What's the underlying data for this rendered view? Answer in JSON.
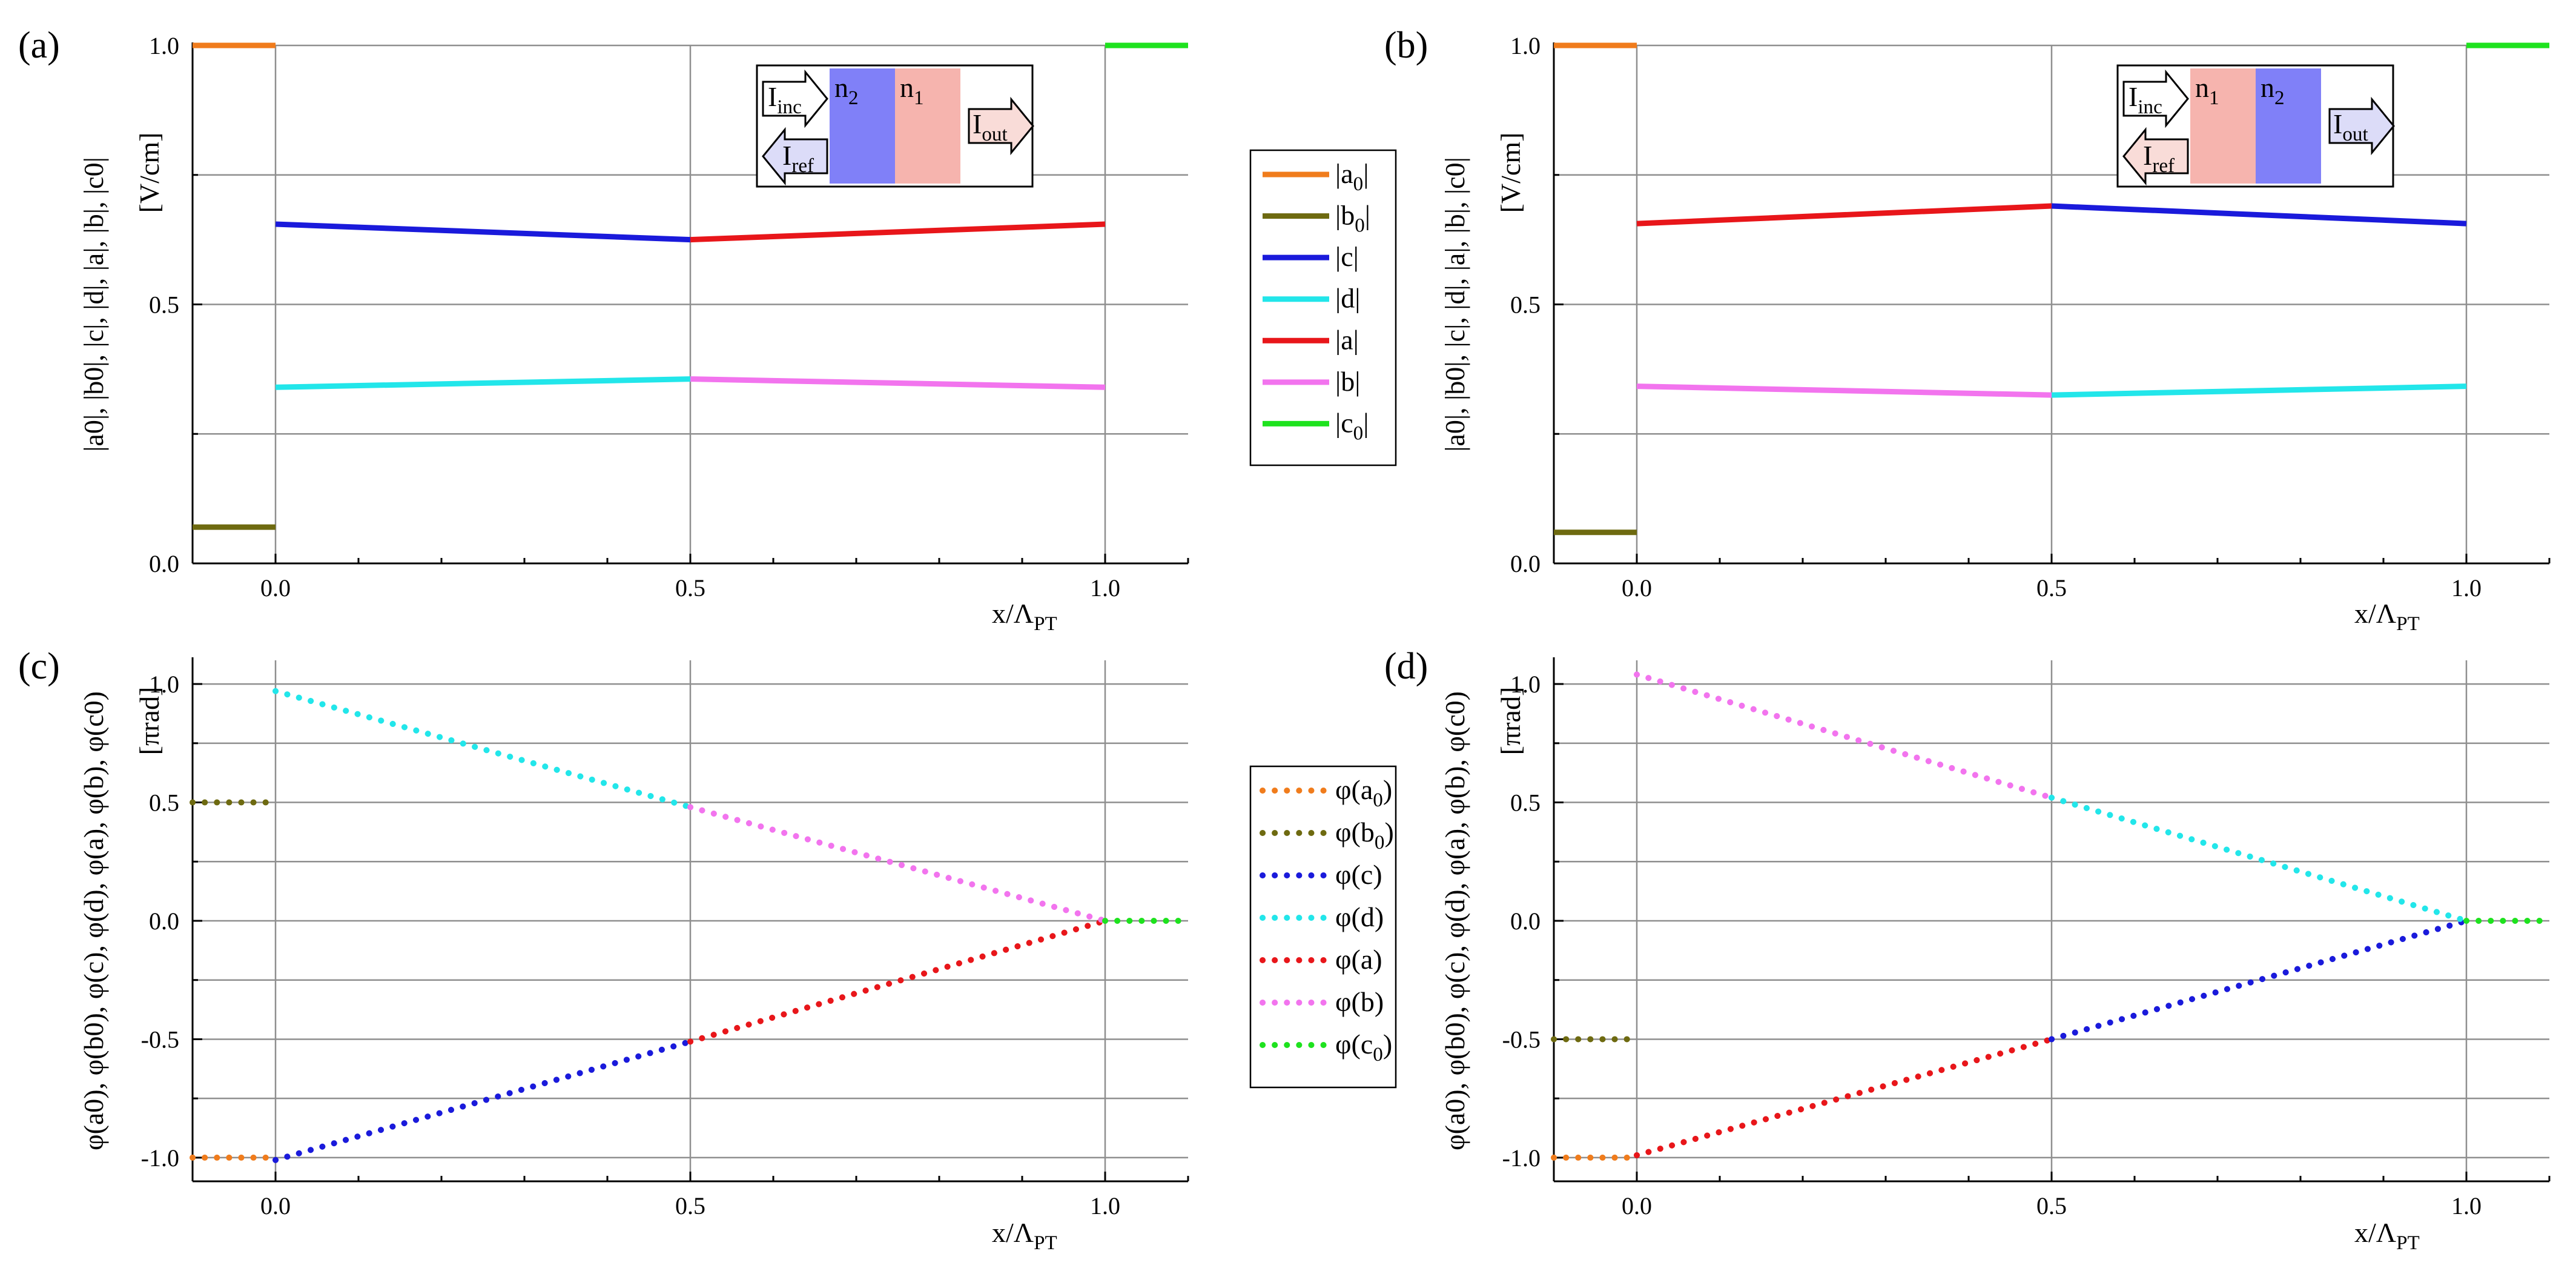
{
  "chart_data": [
    {
      "id": "a",
      "type": "line",
      "panel_label": "(a)",
      "xlabel": "x/Λ",
      "xlabel_sub": "PT",
      "ylabel_main": "|a0|, |b0|, |c|, |d|, |a|, |b|, |c0|",
      "ylabel_unit": "[V/cm]",
      "xlim": [
        -0.1,
        1.1
      ],
      "ylim": [
        0,
        1.0
      ],
      "xticks": [
        0.0,
        0.5,
        1.0
      ],
      "xtick_labels": [
        "0.0",
        "0.5",
        "1.0"
      ],
      "yticks": [
        0.0,
        0.5,
        1.0
      ],
      "ytick_labels": [
        "0.0",
        "0.5",
        "1.0"
      ],
      "minor_yticks": [
        0.25,
        0.75
      ],
      "style": "solid",
      "series": [
        {
          "name": "|a0|",
          "color": "#f07c1c",
          "x": [
            -0.1,
            0.0
          ],
          "y": [
            1.0,
            1.0
          ]
        },
        {
          "name": "|b0|",
          "color": "#6e6a10",
          "x": [
            -0.1,
            0.0
          ],
          "y": [
            0.07,
            0.07
          ]
        },
        {
          "name": "|c|",
          "color": "#1a1adb",
          "x": [
            0.0,
            0.5
          ],
          "y": [
            0.655,
            0.625
          ]
        },
        {
          "name": "|d|",
          "color": "#22e6ea",
          "x": [
            0.0,
            0.5
          ],
          "y": [
            0.34,
            0.356
          ]
        },
        {
          "name": "|a|",
          "color": "#e8161a",
          "x": [
            0.5,
            1.0
          ],
          "y": [
            0.625,
            0.655
          ]
        },
        {
          "name": "|b|",
          "color": "#f274ee",
          "x": [
            0.5,
            1.0
          ],
          "y": [
            0.356,
            0.34
          ]
        },
        {
          "name": "|c0|",
          "color": "#1ee21e",
          "x": [
            1.0,
            1.1
          ],
          "y": [
            1.0,
            1.0
          ]
        }
      ],
      "inset": {
        "arrow_in": "I",
        "arrow_in_sub": "inc",
        "arrow_ref": "I",
        "arrow_ref_sub": "ref",
        "arrow_out": "I",
        "arrow_out_sub": "out",
        "layer1": "n",
        "layer1_sub": "2",
        "layer1_color": "#8080f8",
        "layer2": "n",
        "layer2_sub": "1",
        "layer2_color": "#f6b4ae",
        "ref_arrow_color": "#dcdcf8",
        "out_arrow_color": "#f9dcd8",
        "in_arrow_color": "#ffffff"
      }
    },
    {
      "id": "b",
      "type": "line",
      "panel_label": "(b)",
      "xlabel": "x/Λ",
      "xlabel_sub": "PT",
      "ylabel_main": "|a0|, |b0|, |c|, |d|, |a|, |b|, |c0|",
      "ylabel_unit": "[V/cm]",
      "xlim": [
        -0.1,
        1.1
      ],
      "ylim": [
        0,
        1.0
      ],
      "xticks": [
        0.0,
        0.5,
        1.0
      ],
      "xtick_labels": [
        "0.0",
        "0.5",
        "1.0"
      ],
      "yticks": [
        0.0,
        0.5,
        1.0
      ],
      "ytick_labels": [
        "0.0",
        "0.5",
        "1.0"
      ],
      "minor_yticks": [
        0.25,
        0.75
      ],
      "style": "solid",
      "series": [
        {
          "name": "|a0|",
          "color": "#f07c1c",
          "x": [
            -0.1,
            0.0
          ],
          "y": [
            1.0,
            1.0
          ]
        },
        {
          "name": "|b0|",
          "color": "#6e6a10",
          "x": [
            -0.1,
            0.0
          ],
          "y": [
            0.06,
            0.06
          ]
        },
        {
          "name": "|a|",
          "color": "#e8161a",
          "x": [
            0.0,
            0.5
          ],
          "y": [
            0.656,
            0.69
          ]
        },
        {
          "name": "|b|",
          "color": "#f274ee",
          "x": [
            0.0,
            0.5
          ],
          "y": [
            0.342,
            0.325
          ]
        },
        {
          "name": "|c|",
          "color": "#1a1adb",
          "x": [
            0.5,
            1.0
          ],
          "y": [
            0.69,
            0.656
          ]
        },
        {
          "name": "|d|",
          "color": "#22e6ea",
          "x": [
            0.5,
            1.0
          ],
          "y": [
            0.325,
            0.342
          ]
        },
        {
          "name": "|c0|",
          "color": "#1ee21e",
          "x": [
            1.0,
            1.1
          ],
          "y": [
            1.0,
            1.0
          ]
        }
      ],
      "inset": {
        "arrow_in": "I",
        "arrow_in_sub": "inc",
        "arrow_ref": "I",
        "arrow_ref_sub": "ref",
        "arrow_out": "I",
        "arrow_out_sub": "out",
        "layer1": "n",
        "layer1_sub": "1",
        "layer1_color": "#f6b4ae",
        "layer2": "n",
        "layer2_sub": "2",
        "layer2_color": "#8080f8",
        "ref_arrow_color": "#f9dcd8",
        "out_arrow_color": "#dcdcf8",
        "in_arrow_color": "#ffffff"
      }
    },
    {
      "id": "c",
      "type": "line",
      "panel_label": "(c)",
      "xlabel": "x/Λ",
      "xlabel_sub": "PT",
      "ylabel_main": "φ(a0), φ(b0), φ(c), φ(d), φ(a), φ(b), φ(c0)",
      "ylabel_unit": "[πrad]",
      "xlim": [
        -0.1,
        1.1
      ],
      "ylim": [
        -1.1,
        1.1
      ],
      "xticks": [
        0.0,
        0.5,
        1.0
      ],
      "xtick_labels": [
        "0.0",
        "0.5",
        "1.0"
      ],
      "yticks": [
        -1.0,
        -0.5,
        0.0,
        0.5,
        1.0
      ],
      "ytick_labels": [
        "-1.0",
        "-0.5",
        "0.0",
        "0.5",
        "1.0"
      ],
      "minor_yticks": [
        -0.75,
        -0.25,
        0.25,
        0.75
      ],
      "style": "dotted",
      "series": [
        {
          "name": "φ(a0)",
          "color": "#f07c1c",
          "x": [
            -0.1,
            0.0
          ],
          "y": [
            -1.0,
            -1.0
          ]
        },
        {
          "name": "φ(b0)",
          "color": "#6e6a10",
          "x": [
            -0.1,
            0.0
          ],
          "y": [
            0.5,
            0.5
          ]
        },
        {
          "name": "φ(c)",
          "color": "#1a1adb",
          "x": [
            0.0,
            0.5
          ],
          "y": [
            -1.01,
            -0.51
          ]
        },
        {
          "name": "φ(d)",
          "color": "#22e6ea",
          "x": [
            0.0,
            0.5
          ],
          "y": [
            0.97,
            0.48
          ]
        },
        {
          "name": "φ(a)",
          "color": "#e8161a",
          "x": [
            0.5,
            1.0
          ],
          "y": [
            -0.51,
            0.0
          ]
        },
        {
          "name": "φ(b)",
          "color": "#f274ee",
          "x": [
            0.5,
            1.0
          ],
          "y": [
            0.48,
            0.0
          ]
        },
        {
          "name": "φ(c0)",
          "color": "#1ee21e",
          "x": [
            1.0,
            1.1
          ],
          "y": [
            0.0,
            0.0
          ]
        }
      ]
    },
    {
      "id": "d",
      "type": "line",
      "panel_label": "(d)",
      "xlabel": "x/Λ",
      "xlabel_sub": "PT",
      "ylabel_main": "φ(a0), φ(b0), φ(c), φ(d), φ(a), φ(b), φ(c0)",
      "ylabel_unit": "[πrad]",
      "xlim": [
        -0.1,
        1.1
      ],
      "ylim": [
        -1.1,
        1.1
      ],
      "xticks": [
        0.0,
        0.5,
        1.0
      ],
      "xtick_labels": [
        "0.0",
        "0.5",
        "1.0"
      ],
      "yticks": [
        -1.0,
        -0.5,
        0.0,
        0.5,
        1.0
      ],
      "ytick_labels": [
        "-1.0",
        "-0.5",
        "0.0",
        "0.5",
        "1.0"
      ],
      "minor_yticks": [
        -0.75,
        -0.25,
        0.25,
        0.75
      ],
      "style": "dotted",
      "series": [
        {
          "name": "φ(a0)",
          "color": "#f07c1c",
          "x": [
            -0.1,
            0.0
          ],
          "y": [
            -1.0,
            -1.0
          ]
        },
        {
          "name": "φ(b0)",
          "color": "#6e6a10",
          "x": [
            -0.1,
            0.0
          ],
          "y": [
            -0.5,
            -0.5
          ]
        },
        {
          "name": "φ(a)",
          "color": "#e8161a",
          "x": [
            0.0,
            0.5
          ],
          "y": [
            -0.99,
            -0.5
          ]
        },
        {
          "name": "φ(b)",
          "color": "#f274ee",
          "x": [
            0.0,
            0.5
          ],
          "y": [
            1.04,
            0.52
          ]
        },
        {
          "name": "φ(c)",
          "color": "#1a1adb",
          "x": [
            0.5,
            1.0
          ],
          "y": [
            -0.5,
            0.0
          ]
        },
        {
          "name": "φ(d)",
          "color": "#22e6ea",
          "x": [
            0.5,
            1.0
          ],
          "y": [
            0.52,
            0.0
          ]
        },
        {
          "name": "φ(c0)",
          "color": "#1ee21e",
          "x": [
            1.0,
            1.1
          ],
          "y": [
            0.0,
            0.0
          ]
        }
      ]
    }
  ],
  "legends": [
    {
      "id": "legend-magnitude",
      "style": "solid",
      "entries": [
        {
          "label": "|a0|",
          "main": "|a",
          "sub": "0",
          "tail": "|",
          "color": "#f07c1c"
        },
        {
          "label": "|b0|",
          "main": "|b",
          "sub": "0",
          "tail": "|",
          "color": "#6e6a10"
        },
        {
          "label": "|c|",
          "main": "|c|",
          "sub": "",
          "tail": "",
          "color": "#1a1adb"
        },
        {
          "label": "|d|",
          "main": "|d|",
          "sub": "",
          "tail": "",
          "color": "#22e6ea"
        },
        {
          "label": "|a|",
          "main": "|a|",
          "sub": "",
          "tail": "",
          "color": "#e8161a"
        },
        {
          "label": "|b|",
          "main": "|b|",
          "sub": "",
          "tail": "",
          "color": "#f274ee"
        },
        {
          "label": "|c0|",
          "main": "|c",
          "sub": "0",
          "tail": "|",
          "color": "#1ee21e"
        }
      ]
    },
    {
      "id": "legend-phase",
      "style": "dotted",
      "entries": [
        {
          "label": "φ(a0)",
          "main": "φ(a",
          "sub": "0",
          "tail": ")",
          "color": "#f07c1c"
        },
        {
          "label": "φ(b0)",
          "main": "φ(b",
          "sub": "0",
          "tail": ")",
          "color": "#6e6a10"
        },
        {
          "label": "φ(c)",
          "main": "φ(c)",
          "sub": "",
          "tail": "",
          "color": "#1a1adb"
        },
        {
          "label": "φ(d)",
          "main": "φ(d)",
          "sub": "",
          "tail": "",
          "color": "#22e6ea"
        },
        {
          "label": "φ(a)",
          "main": "φ(a)",
          "sub": "",
          "tail": "",
          "color": "#e8161a"
        },
        {
          "label": "φ(b)",
          "main": "φ(b)",
          "sub": "",
          "tail": "",
          "color": "#f274ee"
        },
        {
          "label": "φ(c0)",
          "main": "φ(c",
          "sub": "0",
          "tail": ")",
          "color": "#1ee21e"
        }
      ]
    }
  ]
}
